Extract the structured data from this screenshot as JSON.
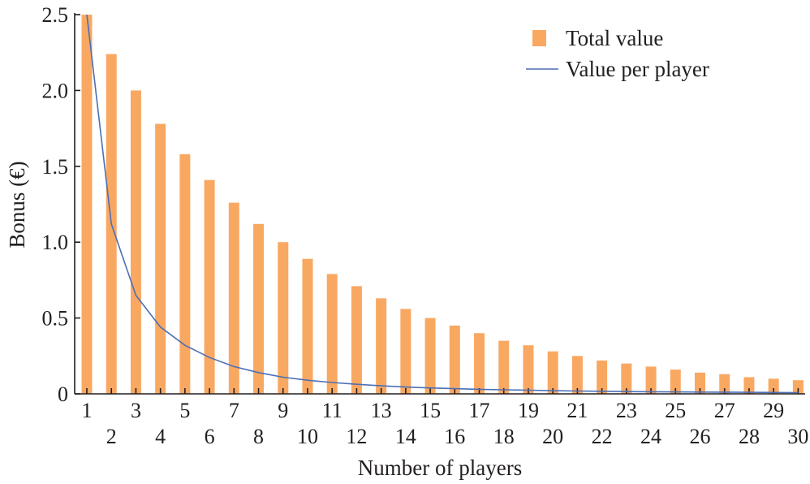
{
  "chart_data": {
    "type": "bar",
    "xlabel": "Number of players",
    "ylabel": "Bonus (€)",
    "ylim": [
      0,
      2.5
    ],
    "yticks": [
      "0",
      "0.5",
      "1.0",
      "1.5",
      "2.0",
      "2.5"
    ],
    "legend_position": "top-right",
    "categories": [
      1,
      2,
      3,
      4,
      5,
      6,
      7,
      8,
      9,
      10,
      11,
      12,
      13,
      14,
      15,
      16,
      17,
      18,
      19,
      20,
      21,
      22,
      23,
      24,
      25,
      26,
      27,
      28,
      29,
      30
    ],
    "series": [
      {
        "name": "Total value",
        "type": "bar",
        "color": "#f9a862",
        "values": [
          2.5,
          2.24,
          2.0,
          1.78,
          1.58,
          1.41,
          1.26,
          1.12,
          1.0,
          0.89,
          0.79,
          0.71,
          0.63,
          0.56,
          0.5,
          0.45,
          0.4,
          0.35,
          0.32,
          0.28,
          0.25,
          0.22,
          0.2,
          0.18,
          0.16,
          0.14,
          0.13,
          0.11,
          0.1,
          0.09
        ]
      },
      {
        "name": "Value per player",
        "type": "line",
        "color": "#4c6fb5",
        "values": [
          2.5,
          1.12,
          0.65,
          0.44,
          0.32,
          0.24,
          0.18,
          0.14,
          0.11,
          0.09,
          0.075,
          0.063,
          0.053,
          0.045,
          0.039,
          0.034,
          0.03,
          0.027,
          0.024,
          0.021,
          0.019,
          0.017,
          0.015,
          0.014,
          0.013,
          0.012,
          0.011,
          0.01,
          0.009,
          0.008
        ]
      }
    ]
  }
}
